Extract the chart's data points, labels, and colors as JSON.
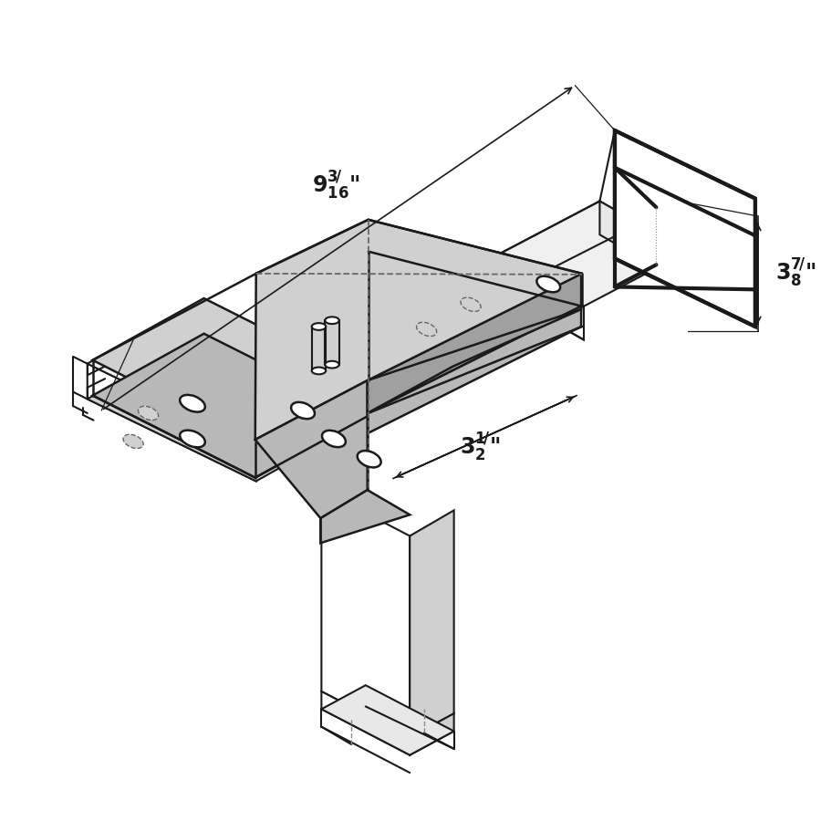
{
  "bg_color": "#ffffff",
  "lc": "#1a1a1a",
  "W": "#ffffff",
  "LG": "#d0d0d0",
  "MG": "#b8b8b8",
  "DG": "#a0a0a0",
  "VLG": "#e8e8e8",
  "ELG": "#f0f0f0"
}
